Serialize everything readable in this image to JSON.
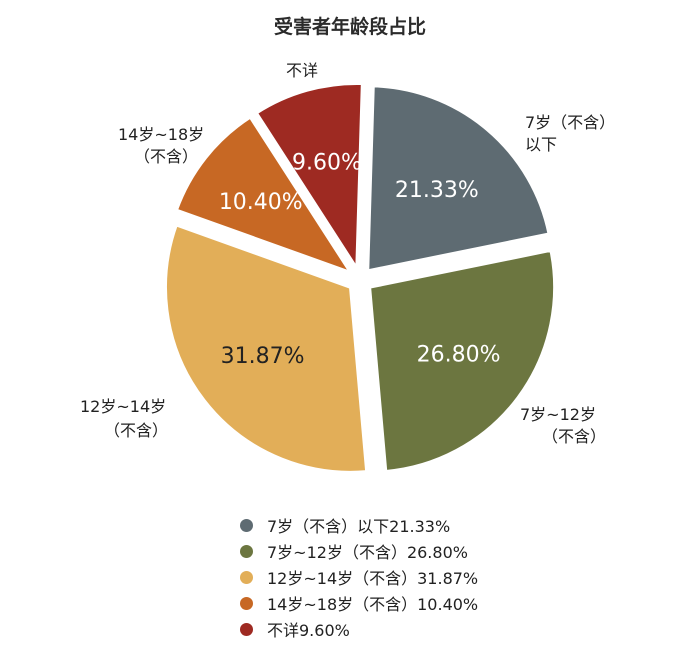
{
  "chart_data": {
    "type": "pie",
    "title": "受害者年龄段占比",
    "slices": [
      {
        "label": "7岁（不含）以下",
        "callout": [
          "7岁（不含）",
          "以下"
        ],
        "value": 21.33,
        "value_label": "21.33%",
        "legend": "7岁（不含）以下21.33%",
        "color": "#5e6b72"
      },
      {
        "label": "7岁~12岁（不含）",
        "callout": [
          "7岁~12岁",
          "（不含）"
        ],
        "value": 26.8,
        "value_label": "26.80%",
        "legend": "7岁~12岁（不含）26.80%",
        "color": "#6c7640"
      },
      {
        "label": "12岁~14岁（不含）",
        "callout": [
          "12岁~14岁",
          "（不含）"
        ],
        "value": 31.87,
        "value_label": "31.87%",
        "legend": "12岁~14岁（不含）31.87%",
        "color": "#e2ae58"
      },
      {
        "label": "14岁~18岁（不含）",
        "callout": [
          "14岁~18岁",
          "（不含）"
        ],
        "value": 10.4,
        "value_label": "10.40%",
        "legend": "14岁~18岁（不含）10.40%",
        "color": "#c76824"
      },
      {
        "label": "不详",
        "callout": [
          "不详"
        ],
        "value": 9.6,
        "value_label": "9.60%",
        "legend": "不详9.60%",
        "color": "#9e2a22"
      }
    ],
    "legend_position": "bottom"
  }
}
